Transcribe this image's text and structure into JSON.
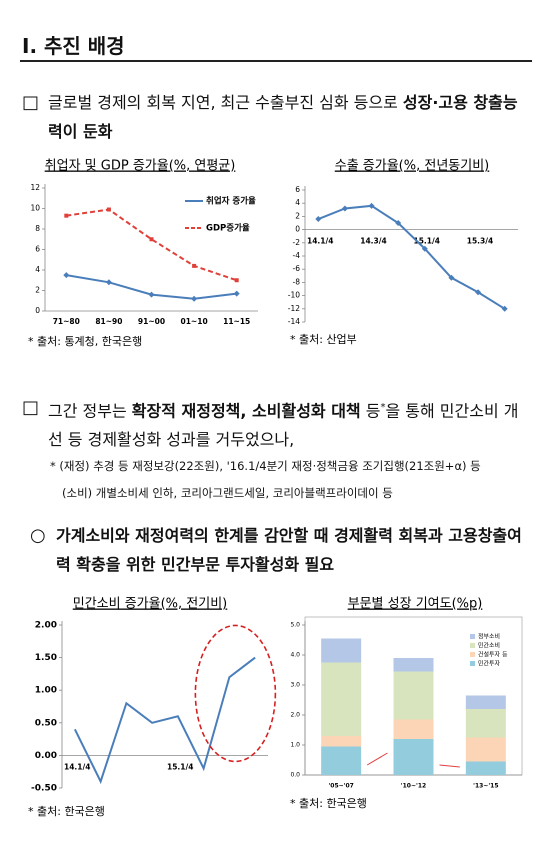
{
  "header": {
    "title": "Ⅰ. 추진 배경"
  },
  "sections": [
    {
      "bullet": "□",
      "runs": [
        {
          "text": "글로벌 경제의 회복 지연, 최근 수출부진 심화 등으로 "
        },
        {
          "text": "성장·고용 창출능력이 둔화",
          "bold": true
        }
      ]
    },
    {
      "bullet": "□",
      "runs": [
        {
          "text": "그간 정부는 "
        },
        {
          "text": "확장적 재정정책, 소비활성화 대책",
          "bold": true
        },
        {
          "text": " 등"
        },
        {
          "text": "*",
          "sup": true
        },
        {
          "text": "을 통해 민간소비 개선 등 경제활성화 성과를 거두었으나,"
        }
      ],
      "notes": [
        "* (재정) 추경 등 재정보강(22조원), '16.1/4분기 재정·정책금융 조기집행(21조원+α) 등",
        "(소비) 개별소비세 인하, 코리아그랜드세일, 코리아블랙프라이데이 등"
      ]
    },
    {
      "bullet": "○",
      "runs": [
        {
          "text": "가계소비와 재정여력의 한계를 감안할 때 경제활력 회복과 고용창출여력 확충을 위한 민간부문 투자활성화 필요",
          "bold": true
        }
      ]
    }
  ],
  "chart_data": [
    {
      "type": "line",
      "title": "취업자 및 GDP 증가율(%, 연평균)",
      "source": "* 출처: 통계청, 한국은행",
      "categories": [
        "71~80",
        "81~90",
        "91~00",
        "01~10",
        "11~15"
      ],
      "series": [
        {
          "name": "취업자 증가율",
          "color": "#4a7ebb",
          "values": [
            3.5,
            2.8,
            1.6,
            1.2,
            1.7
          ]
        },
        {
          "name": "GDP증가율",
          "color": "#e0403a",
          "dashed": true,
          "values": [
            9.3,
            9.9,
            7.0,
            4.4,
            3.0
          ]
        }
      ],
      "markers": true,
      "ylim": [
        0,
        12
      ],
      "yticks": [
        0,
        2,
        4,
        6,
        8,
        10,
        12
      ]
    },
    {
      "type": "line",
      "title": "수출 증가율(%, 전년동기비)",
      "source": "* 출처: 산업부",
      "categories": [
        "14.1/4",
        null,
        "14.3/4",
        null,
        "15.1/4",
        null,
        "15.3/4",
        null
      ],
      "series": [
        {
          "color": "#4a7ebb",
          "values": [
            1.6,
            3.2,
            3.6,
            1.0,
            -2.9,
            -7.3,
            -9.5,
            -12.0
          ]
        }
      ],
      "markers": true,
      "ylim": [
        -14,
        6
      ],
      "yticks": [
        -14,
        -12,
        -10,
        -8,
        -6,
        -4,
        -2,
        0,
        2,
        4,
        6
      ]
    },
    {
      "type": "line",
      "title": "민간소비 증가율(%, 전기비)",
      "source": "* 출처: 한국은행",
      "categories": [
        "14.1/4",
        null,
        null,
        null,
        "15.1/4",
        null,
        null,
        null
      ],
      "series": [
        {
          "color": "#4a7ebb",
          "values": [
            0.4,
            -0.4,
            0.8,
            0.5,
            0.6,
            -0.2,
            1.2,
            1.5
          ]
        }
      ],
      "ylim": [
        -0.5,
        2.0
      ],
      "yticks": [
        {
          "value": -0.5,
          "label": "-0.50"
        },
        {
          "value": 0,
          "label": "0.00"
        },
        {
          "value": 0.5,
          "label": "0.50"
        },
        {
          "value": 1.0,
          "label": "1.00"
        },
        {
          "value": 1.5,
          "label": "1.50"
        },
        {
          "value": 2.0,
          "label": "2.00"
        }
      ]
    },
    {
      "type": "bar",
      "stacked": true,
      "title": "부문별 성장 기여도(%p)",
      "source": "* 출처: 한국은행",
      "categories": [
        "'05~'07",
        "'10~'12",
        "'13~'15"
      ],
      "series": [
        {
          "name": "정부소비",
          "color": "#b4c7e7",
          "values": [
            0.8,
            0.45,
            0.45
          ]
        },
        {
          "name": "민간소비",
          "color": "#d7e4bd",
          "values": [
            2.45,
            1.6,
            0.95
          ]
        },
        {
          "name": "건설투자 등",
          "color": "#fbd5b5",
          "values": [
            0.35,
            0.65,
            0.8
          ]
        },
        {
          "name": "민간투자",
          "color": "#93cddd",
          "values": [
            0.95,
            1.2,
            0.45
          ]
        }
      ],
      "ylim": [
        0,
        5
      ],
      "yticks": [
        {
          "value": 0,
          "label": "0.0"
        },
        {
          "value": 1,
          "label": "1.0"
        },
        {
          "value": 2,
          "label": "2.0"
        },
        {
          "value": 3,
          "label": "3.0"
        },
        {
          "value": 4,
          "label": "4.0"
        },
        {
          "value": 5,
          "label": "5.0"
        }
      ]
    }
  ]
}
